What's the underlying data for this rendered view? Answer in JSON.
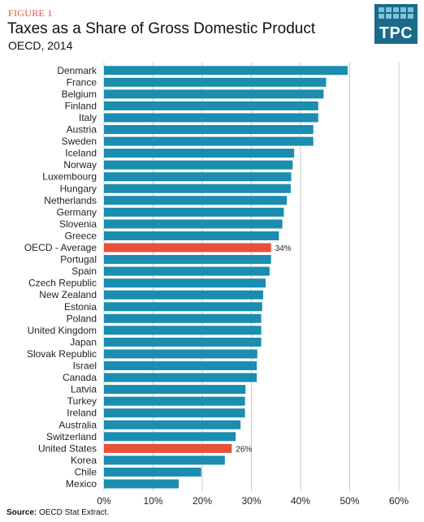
{
  "header": {
    "figure_label": "FIGURE 1",
    "title": "Taxes as a Share of Gross Domestic Product",
    "subtitle": "OECD, 2014"
  },
  "logo": {
    "text": "TPC"
  },
  "source": {
    "label": "Source:",
    "text": "OECD  Stat Extract."
  },
  "colors": {
    "bar": "#1a8db0",
    "highlight": "#e8503a",
    "grid": "#c9c9c9"
  },
  "chart_data": {
    "type": "bar",
    "orientation": "horizontal",
    "title": "Taxes as a Share of Gross Domestic Product",
    "subtitle": "OECD, 2014",
    "xlim": [
      0,
      60
    ],
    "xticks": [
      0,
      10,
      20,
      30,
      40,
      50,
      60
    ],
    "xtick_labels": [
      "0%",
      "10%",
      "20%",
      "30%",
      "40%",
      "50%",
      "60%"
    ],
    "grid": "vertical",
    "categories": [
      "Denmark",
      "France",
      "Belgium",
      "Finland",
      "Italy",
      "Austria",
      "Sweden",
      "Iceland",
      "Norway",
      "Luxembourg",
      "Hungary",
      "Netherlands",
      "Germany",
      "Slovenia",
      "Greece",
      "OECD - Average",
      "Portugal",
      "Spain",
      "Czech Republic",
      "New Zealand",
      "Estonia",
      "Poland",
      "United Kingdom",
      "Japan",
      "Slovak Republic",
      "Israel",
      "Canada",
      "Latvia",
      "Turkey",
      "Ireland",
      "Australia",
      "Switzerland",
      "United States",
      "Korea",
      "Chile",
      "Mexico"
    ],
    "values": [
      49.6,
      45.2,
      44.7,
      43.6,
      43.6,
      42.6,
      42.6,
      38.7,
      38.4,
      38.1,
      38.0,
      37.2,
      36.6,
      36.3,
      35.6,
      34.0,
      34.0,
      33.7,
      32.9,
      32.4,
      32.2,
      32.0,
      32.0,
      32.0,
      31.2,
      31.1,
      31.1,
      28.8,
      28.7,
      28.7,
      27.8,
      26.8,
      26.0,
      24.6,
      19.8,
      15.2
    ],
    "highlight_categories": [
      "OECD - Average",
      "United States"
    ],
    "data_labels": {
      "OECD - Average": "34%",
      "United States": "26%"
    }
  }
}
